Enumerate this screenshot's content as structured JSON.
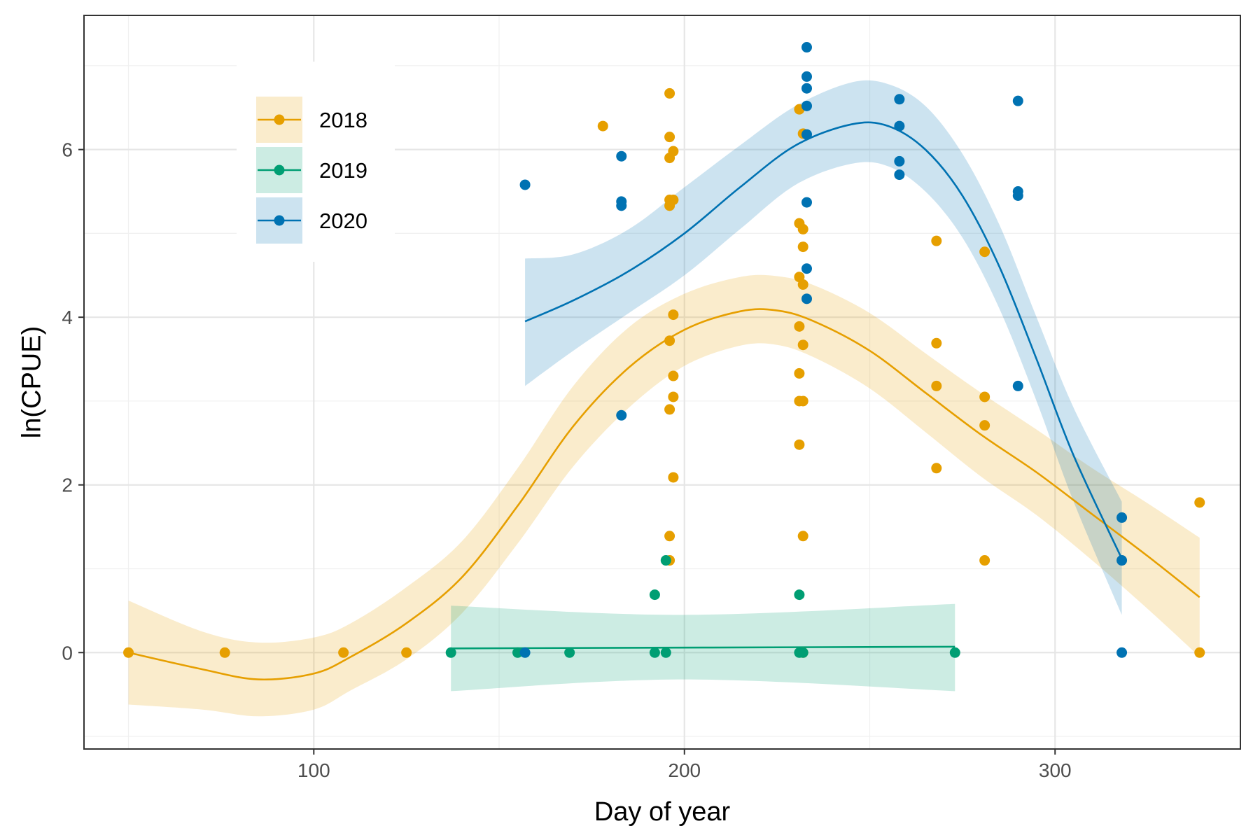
{
  "chart_data": {
    "type": "scatter",
    "title": "",
    "xlabel": "Day of year",
    "ylabel": "ln(CPUE)",
    "xlim": [
      38,
      350
    ],
    "ylim": [
      -1.15,
      7.6
    ],
    "x_ticks": [
      100,
      200,
      300
    ],
    "y_ticks": [
      0,
      2,
      4,
      6
    ],
    "x_tick_labels": [
      "100",
      "200",
      "300"
    ],
    "y_tick_labels": [
      "0",
      "2",
      "4",
      "6"
    ],
    "grid": true,
    "legend_position": "top-left",
    "series": [
      {
        "name": "2018",
        "color": "#E69F00",
        "points": [
          [
            50,
            0
          ],
          [
            76,
            0
          ],
          [
            108,
            0
          ],
          [
            125,
            0
          ],
          [
            232,
            0
          ],
          [
            339,
            0
          ],
          [
            178,
            6.28
          ],
          [
            196,
            6.67
          ],
          [
            196,
            6.15
          ],
          [
            197,
            5.98
          ],
          [
            196,
            5.9
          ],
          [
            196,
            5.4
          ],
          [
            197,
            5.4
          ],
          [
            196,
            5.33
          ],
          [
            197,
            4.03
          ],
          [
            196,
            3.72
          ],
          [
            197,
            3.3
          ],
          [
            197,
            3.05
          ],
          [
            196,
            2.9
          ],
          [
            197,
            2.09
          ],
          [
            196,
            1.39
          ],
          [
            196,
            1.1
          ],
          [
            231,
            6.48
          ],
          [
            232,
            6.19
          ],
          [
            231,
            5.12
          ],
          [
            232,
            5.05
          ],
          [
            232,
            4.84
          ],
          [
            231,
            4.48
          ],
          [
            232,
            4.39
          ],
          [
            231,
            3.89
          ],
          [
            232,
            3.67
          ],
          [
            231,
            3.33
          ],
          [
            231,
            3.0
          ],
          [
            232,
            3.0
          ],
          [
            231,
            2.48
          ],
          [
            232,
            1.39
          ],
          [
            268,
            4.91
          ],
          [
            268,
            3.69
          ],
          [
            268,
            3.18
          ],
          [
            268,
            2.2
          ],
          [
            281,
            4.78
          ],
          [
            281,
            3.05
          ],
          [
            281,
            2.71
          ],
          [
            281,
            1.1
          ],
          [
            339,
            1.79
          ]
        ],
        "fit": [
          [
            50,
            0.0
          ],
          [
            70,
            -0.2
          ],
          [
            85,
            -0.32
          ],
          [
            100,
            -0.25
          ],
          [
            110,
            -0.05
          ],
          [
            125,
            0.35
          ],
          [
            140,
            0.9
          ],
          [
            155,
            1.75
          ],
          [
            170,
            2.7
          ],
          [
            185,
            3.4
          ],
          [
            200,
            3.85
          ],
          [
            215,
            4.07
          ],
          [
            225,
            4.08
          ],
          [
            235,
            3.95
          ],
          [
            250,
            3.6
          ],
          [
            265,
            3.1
          ],
          [
            280,
            2.6
          ],
          [
            295,
            2.15
          ],
          [
            310,
            1.65
          ],
          [
            325,
            1.15
          ],
          [
            339,
            0.66
          ]
        ],
        "band_upper": [
          [
            50,
            0.62
          ],
          [
            70,
            0.25
          ],
          [
            85,
            0.12
          ],
          [
            100,
            0.18
          ],
          [
            110,
            0.35
          ],
          [
            125,
            0.78
          ],
          [
            140,
            1.33
          ],
          [
            155,
            2.2
          ],
          [
            170,
            3.18
          ],
          [
            185,
            3.88
          ],
          [
            200,
            4.28
          ],
          [
            215,
            4.48
          ],
          [
            225,
            4.49
          ],
          [
            235,
            4.38
          ],
          [
            250,
            4.05
          ],
          [
            265,
            3.57
          ],
          [
            280,
            3.1
          ],
          [
            295,
            2.66
          ],
          [
            310,
            2.2
          ],
          [
            325,
            1.78
          ],
          [
            339,
            1.37
          ]
        ],
        "band_lower": [
          [
            50,
            -0.62
          ],
          [
            70,
            -0.68
          ],
          [
            85,
            -0.76
          ],
          [
            100,
            -0.68
          ],
          [
            110,
            -0.45
          ],
          [
            125,
            -0.08
          ],
          [
            140,
            0.47
          ],
          [
            155,
            1.3
          ],
          [
            170,
            2.22
          ],
          [
            185,
            2.92
          ],
          [
            200,
            3.42
          ],
          [
            215,
            3.66
          ],
          [
            225,
            3.67
          ],
          [
            235,
            3.52
          ],
          [
            250,
            3.15
          ],
          [
            265,
            2.63
          ],
          [
            280,
            2.1
          ],
          [
            295,
            1.64
          ],
          [
            310,
            1.1
          ],
          [
            325,
            0.52
          ],
          [
            339,
            -0.05
          ]
        ]
      },
      {
        "name": "2019",
        "color": "#009E73",
        "points": [
          [
            137,
            0
          ],
          [
            155,
            0
          ],
          [
            169,
            0
          ],
          [
            192,
            0
          ],
          [
            195,
            0
          ],
          [
            231,
            0
          ],
          [
            232,
            0
          ],
          [
            273,
            0
          ],
          [
            195,
            1.1
          ],
          [
            192,
            0.69
          ],
          [
            231,
            0.69
          ]
        ],
        "fit": [
          [
            137,
            0.05
          ],
          [
            273,
            0.07
          ]
        ],
        "band_upper": [
          [
            137,
            0.56
          ],
          [
            200,
            0.45
          ],
          [
            273,
            0.58
          ]
        ],
        "band_lower": [
          [
            137,
            -0.46
          ],
          [
            200,
            -0.32
          ],
          [
            273,
            -0.46
          ]
        ]
      },
      {
        "name": "2020",
        "color": "#0072B2",
        "points": [
          [
            157,
            5.58
          ],
          [
            157,
            0
          ],
          [
            183,
            5.92
          ],
          [
            183,
            5.38
          ],
          [
            183,
            5.33
          ],
          [
            183,
            2.83
          ],
          [
            233,
            7.22
          ],
          [
            233,
            6.87
          ],
          [
            233,
            6.73
          ],
          [
            233,
            6.52
          ],
          [
            233,
            6.18
          ],
          [
            233,
            5.37
          ],
          [
            233,
            4.58
          ],
          [
            233,
            4.22
          ],
          [
            258,
            6.6
          ],
          [
            258,
            6.28
          ],
          [
            258,
            5.86
          ],
          [
            258,
            5.7
          ],
          [
            290,
            6.58
          ],
          [
            290,
            5.5
          ],
          [
            290,
            5.45
          ],
          [
            290,
            3.18
          ],
          [
            318,
            1.61
          ],
          [
            318,
            1.1
          ],
          [
            318,
            0
          ]
        ],
        "fit": [
          [
            157,
            3.95
          ],
          [
            170,
            4.2
          ],
          [
            185,
            4.55
          ],
          [
            200,
            5.0
          ],
          [
            215,
            5.55
          ],
          [
            230,
            6.05
          ],
          [
            245,
            6.3
          ],
          [
            255,
            6.28
          ],
          [
            265,
            6.0
          ],
          [
            275,
            5.45
          ],
          [
            285,
            4.6
          ],
          [
            295,
            3.5
          ],
          [
            305,
            2.35
          ],
          [
            318,
            1.12
          ]
        ],
        "band_upper": [
          [
            157,
            4.7
          ],
          [
            170,
            4.75
          ],
          [
            185,
            5.05
          ],
          [
            200,
            5.55
          ],
          [
            215,
            6.05
          ],
          [
            230,
            6.52
          ],
          [
            245,
            6.8
          ],
          [
            255,
            6.78
          ],
          [
            265,
            6.52
          ],
          [
            275,
            5.95
          ],
          [
            285,
            5.1
          ],
          [
            295,
            4.0
          ],
          [
            305,
            2.92
          ],
          [
            318,
            1.8
          ]
        ],
        "band_lower": [
          [
            157,
            3.18
          ],
          [
            170,
            3.6
          ],
          [
            185,
            4.05
          ],
          [
            200,
            4.5
          ],
          [
            215,
            5.05
          ],
          [
            230,
            5.58
          ],
          [
            245,
            5.83
          ],
          [
            255,
            5.8
          ],
          [
            265,
            5.5
          ],
          [
            275,
            4.95
          ],
          [
            285,
            4.1
          ],
          [
            295,
            3.0
          ],
          [
            305,
            1.8
          ],
          [
            318,
            0.45
          ]
        ]
      }
    ]
  }
}
